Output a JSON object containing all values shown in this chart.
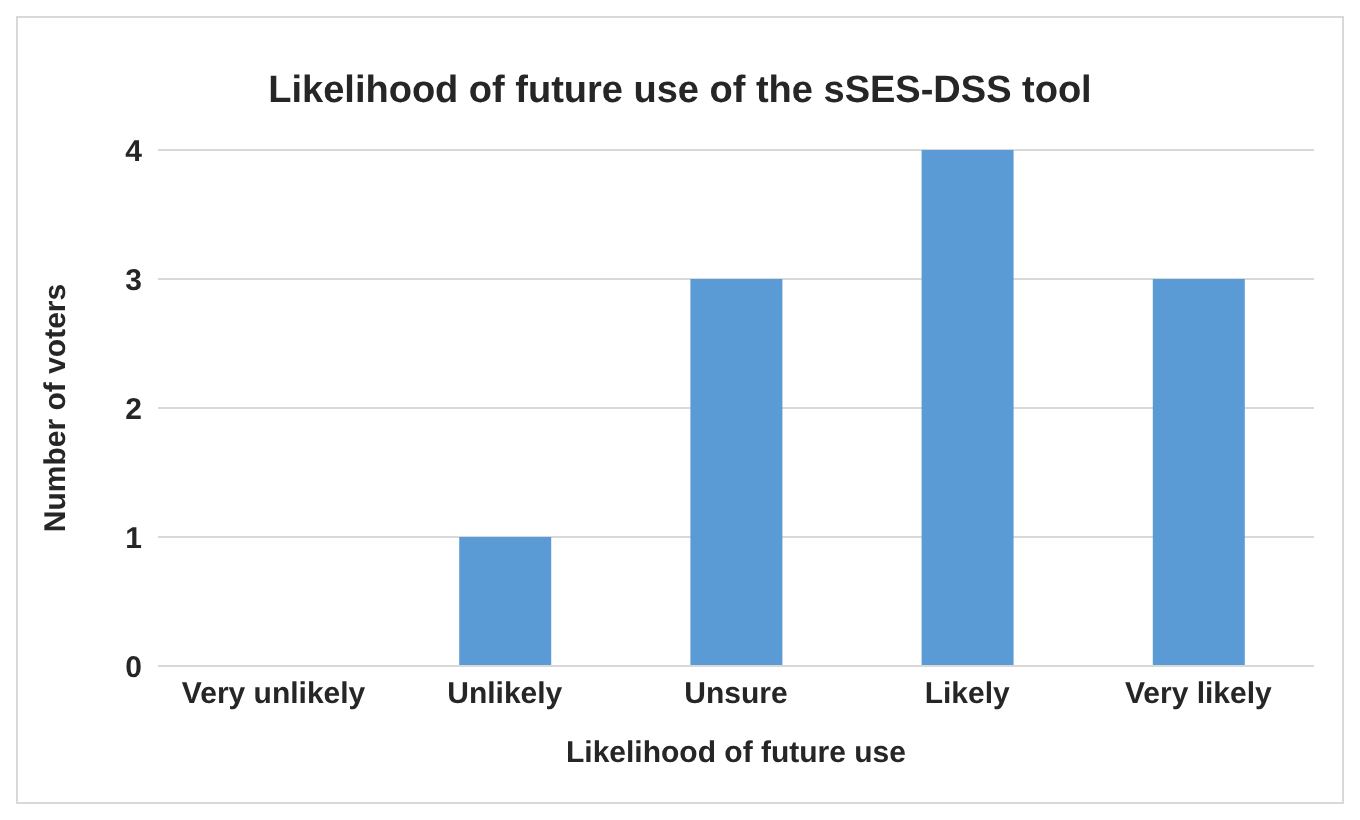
{
  "chart_data": {
    "type": "bar",
    "title": "Likelihood of future use of the sSES-DSS tool",
    "xlabel": "Likelihood of future use",
    "ylabel": "Number of voters",
    "categories": [
      "Very unlikely",
      "Unlikely",
      "Unsure",
      "Likely",
      "Very likely"
    ],
    "values": [
      0,
      1,
      3,
      4,
      3
    ],
    "color": "#5b9bd5",
    "ylim": [
      0,
      4
    ],
    "yticks": [
      0,
      1,
      2,
      3,
      4
    ],
    "grid": "y"
  }
}
